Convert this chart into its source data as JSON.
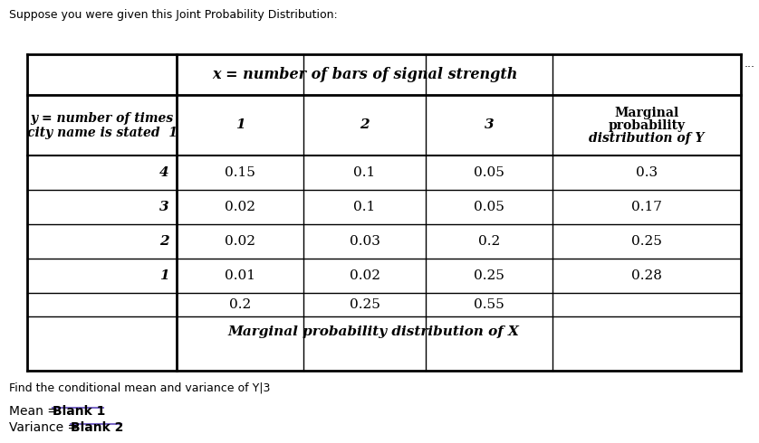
{
  "title": "Suppose you were given this Joint Probability Distribution:",
  "header_x": "x = number of bars of signal strength",
  "header_y_line1": "y = number of times",
  "header_y_line2": "city name is stated",
  "col_headers": [
    "1",
    "2",
    "3"
  ],
  "marginal_y_header_line1": "Marginal",
  "marginal_y_header_line2": "probability",
  "marginal_y_header_line3": "distribution of Y",
  "rows": [
    {
      "y": "4",
      "vals": [
        "0.15",
        "0.1",
        "0.05"
      ],
      "marginal": "0.3"
    },
    {
      "y": "3",
      "vals": [
        "0.02",
        "0.1",
        "0.05"
      ],
      "marginal": "0.17"
    },
    {
      "y": "2",
      "vals": [
        "0.02",
        "0.03",
        "0.2"
      ],
      "marginal": "0.25"
    },
    {
      "y": "1",
      "vals": [
        "0.01",
        "0.02",
        "0.25"
      ],
      "marginal": "0.28"
    }
  ],
  "marginal_x_vals": [
    "0.2",
    "0.25",
    "0.55"
  ],
  "marginal_x_label": "Marginal probability distribution of X",
  "find_text": "Find the conditional mean and variance of Y|3",
  "mean_label": "Mean = ",
  "mean_blank": "Blank 1",
  "var_label": "Variance = ",
  "var_blank": "Blank 2",
  "dots": "...",
  "bg_color": "#ffffff",
  "text_color": "#000000",
  "table_border_color": "#000000",
  "inner_line_color": "#cccccc",
  "blank_underline_color": "#7b68c8"
}
